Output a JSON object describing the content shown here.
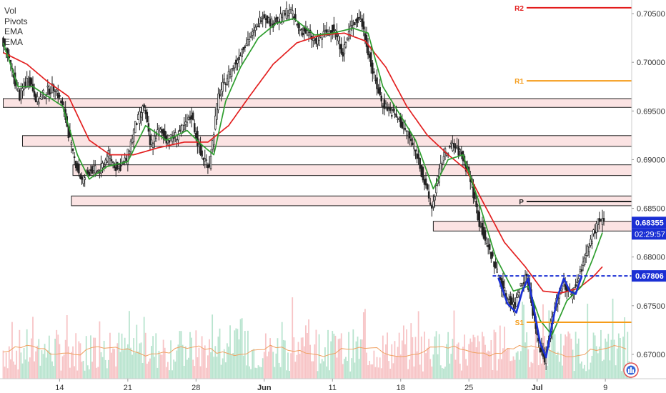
{
  "legend": {
    "items": [
      "Vol",
      "Pivots",
      "EMA",
      "EMA"
    ]
  },
  "colors": {
    "ema_fast": "#2e9e2e",
    "ema_slow": "#e32020",
    "candle": "#222222",
    "zone_fill": "#fbe3e3",
    "zone_stroke": "#222222",
    "pivot_r2": "#e31b1b",
    "pivot_r1": "#f59c1a",
    "pivot_p": "#222222",
    "pivot_s1": "#f59c1a",
    "neckline": "#1a2fd4",
    "pattern": "#1a2fd4",
    "price_badge": "#1a2fd4",
    "vol_up": "#b9e4cf",
    "vol_down": "#f7c4c6",
    "vol_avg": "#f0a060"
  },
  "chart_data": {
    "type": "candlestick",
    "instrument": "",
    "yaxis": {
      "position": "right",
      "ylim": [
        0.6675,
        0.7064
      ],
      "ticks": [
        "0.70500",
        "0.70000",
        "0.69500",
        "0.69000",
        "0.68500",
        "0.68000",
        "0.67500",
        "0.67000"
      ],
      "tick_values": [
        0.705,
        0.7,
        0.695,
        0.69,
        0.685,
        0.68,
        0.675,
        0.67
      ]
    },
    "xaxis": {
      "ticks": [
        "14",
        "21",
        "28",
        "Jun",
        "11",
        "18",
        "25",
        "Jul",
        "9"
      ],
      "bold": [
        "Jun",
        "Jul"
      ],
      "tick_bar_index": [
        38,
        84,
        130,
        176,
        222,
        268,
        314,
        360,
        406
      ]
    },
    "price_path": [
      [
        0,
        0.7025
      ],
      [
        6,
        0.6995
      ],
      [
        12,
        0.6965
      ],
      [
        18,
        0.6985
      ],
      [
        24,
        0.696
      ],
      [
        30,
        0.697
      ],
      [
        36,
        0.6975
      ],
      [
        42,
        0.695
      ],
      [
        48,
        0.6905
      ],
      [
        54,
        0.6878
      ],
      [
        60,
        0.689
      ],
      [
        66,
        0.6888
      ],
      [
        72,
        0.6905
      ],
      [
        78,
        0.689
      ],
      [
        84,
        0.69
      ],
      [
        90,
        0.6935
      ],
      [
        96,
        0.6955
      ],
      [
        100,
        0.6915
      ],
      [
        106,
        0.693
      ],
      [
        112,
        0.692
      ],
      [
        118,
        0.6925
      ],
      [
        124,
        0.6935
      ],
      [
        128,
        0.6945
      ],
      [
        134,
        0.6905
      ],
      [
        140,
        0.6895
      ],
      [
        146,
        0.6965
      ],
      [
        152,
        0.6985
      ],
      [
        158,
        0.7
      ],
      [
        164,
        0.702
      ],
      [
        170,
        0.703
      ],
      [
        176,
        0.705
      ],
      [
        182,
        0.704
      ],
      [
        188,
        0.7045
      ],
      [
        194,
        0.7055
      ],
      [
        200,
        0.7035
      ],
      [
        206,
        0.703
      ],
      [
        212,
        0.702
      ],
      [
        218,
        0.703
      ],
      [
        224,
        0.7035
      ],
      [
        230,
        0.701
      ],
      [
        236,
        0.704
      ],
      [
        242,
        0.7045
      ],
      [
        246,
        0.702
      ],
      [
        250,
        0.699
      ],
      [
        256,
        0.696
      ],
      [
        262,
        0.695
      ],
      [
        268,
        0.694
      ],
      [
        274,
        0.6925
      ],
      [
        280,
        0.6905
      ],
      [
        286,
        0.687
      ],
      [
        290,
        0.685
      ],
      [
        294,
        0.688
      ],
      [
        298,
        0.6905
      ],
      [
        304,
        0.6915
      ],
      [
        310,
        0.6905
      ],
      [
        316,
        0.688
      ],
      [
        322,
        0.6835
      ],
      [
        328,
        0.681
      ],
      [
        334,
        0.6785
      ],
      [
        340,
        0.676
      ],
      [
        346,
        0.675
      ],
      [
        350,
        0.6775
      ],
      [
        354,
        0.678
      ],
      [
        358,
        0.6745
      ],
      [
        362,
        0.671
      ],
      [
        366,
        0.6695
      ],
      [
        372,
        0.6745
      ],
      [
        378,
        0.6775
      ],
      [
        384,
        0.676
      ],
      [
        388,
        0.6775
      ],
      [
        392,
        0.6795
      ],
      [
        398,
        0.682
      ],
      [
        402,
        0.6835
      ]
    ],
    "ema_fast": [
      [
        0,
        0.702
      ],
      [
        10,
        0.6975
      ],
      [
        20,
        0.6975
      ],
      [
        30,
        0.6965
      ],
      [
        40,
        0.6955
      ],
      [
        50,
        0.6905
      ],
      [
        58,
        0.688
      ],
      [
        70,
        0.6893
      ],
      [
        84,
        0.6898
      ],
      [
        96,
        0.6935
      ],
      [
        110,
        0.692
      ],
      [
        124,
        0.693
      ],
      [
        134,
        0.6915
      ],
      [
        142,
        0.6905
      ],
      [
        150,
        0.696
      ],
      [
        160,
        0.6995
      ],
      [
        172,
        0.7025
      ],
      [
        184,
        0.704
      ],
      [
        196,
        0.7045
      ],
      [
        210,
        0.7028
      ],
      [
        222,
        0.703
      ],
      [
        236,
        0.7035
      ],
      [
        246,
        0.703
      ],
      [
        256,
        0.6975
      ],
      [
        266,
        0.695
      ],
      [
        278,
        0.692
      ],
      [
        290,
        0.687
      ],
      [
        300,
        0.69
      ],
      [
        310,
        0.6905
      ],
      [
        320,
        0.686
      ],
      [
        332,
        0.68
      ],
      [
        344,
        0.6765
      ],
      [
        354,
        0.677
      ],
      [
        362,
        0.6735
      ],
      [
        370,
        0.672
      ],
      [
        380,
        0.6755
      ],
      [
        390,
        0.677
      ],
      [
        398,
        0.68
      ],
      [
        404,
        0.6825
      ]
    ],
    "ema_slow": [
      [
        0,
        0.701
      ],
      [
        16,
        0.6998
      ],
      [
        30,
        0.698
      ],
      [
        44,
        0.6965
      ],
      [
        58,
        0.692
      ],
      [
        72,
        0.6905
      ],
      [
        88,
        0.6905
      ],
      [
        104,
        0.6912
      ],
      [
        122,
        0.6918
      ],
      [
        138,
        0.6918
      ],
      [
        152,
        0.6935
      ],
      [
        166,
        0.6965
      ],
      [
        182,
        0.6998
      ],
      [
        198,
        0.702
      ],
      [
        214,
        0.7028
      ],
      [
        230,
        0.703
      ],
      [
        244,
        0.7022
      ],
      [
        258,
        0.6995
      ],
      [
        272,
        0.6955
      ],
      [
        286,
        0.6925
      ],
      [
        300,
        0.6905
      ],
      [
        312,
        0.689
      ],
      [
        324,
        0.6855
      ],
      [
        338,
        0.6815
      ],
      [
        352,
        0.679
      ],
      [
        364,
        0.6765
      ],
      [
        376,
        0.6763
      ],
      [
        388,
        0.6768
      ],
      [
        398,
        0.678
      ],
      [
        404,
        0.679
      ]
    ],
    "zones": [
      {
        "start_bar": 0,
        "top": 0.69627,
        "bottom": 0.69537,
        "label": ""
      },
      {
        "start_bar": 13,
        "top": 0.69247,
        "bottom": 0.69137,
        "label": ""
      },
      {
        "start_bar": 47,
        "top": 0.68947,
        "bottom": 0.68837,
        "label": ""
      },
      {
        "start_bar": 46,
        "top": 0.68627,
        "bottom": 0.68527,
        "label": ""
      },
      {
        "start_bar": 290,
        "top": 0.68367,
        "bottom": 0.68267,
        "label": ""
      }
    ],
    "pivots": [
      {
        "label": "R2",
        "value": 0.7056,
        "start_bar": 350
      },
      {
        "label": "R1",
        "value": 0.6981,
        "start_bar": 350
      },
      {
        "label": "P",
        "value": 0.6857,
        "start_bar": 350
      },
      {
        "label": "S1",
        "value": 0.6733,
        "start_bar": 350
      }
    ],
    "neckline": {
      "value": 0.67806,
      "start_bar": 330,
      "label": "0.67806"
    },
    "current_price": {
      "value": 0.68355,
      "label": "0.68355",
      "countdown": "02:29:57"
    },
    "pattern_path": [
      [
        334,
        0.6778
      ],
      [
        340,
        0.6752
      ],
      [
        346,
        0.6743
      ],
      [
        350,
        0.6765
      ],
      [
        354,
        0.6778
      ],
      [
        358,
        0.6745
      ],
      [
        362,
        0.6712
      ],
      [
        366,
        0.6697
      ],
      [
        370,
        0.673
      ],
      [
        374,
        0.676
      ],
      [
        378,
        0.6778
      ],
      [
        382,
        0.6765
      ],
      [
        386,
        0.6762
      ],
      [
        390,
        0.678
      ]
    ],
    "volume": {
      "average": 0.18,
      "note": ""
    }
  }
}
